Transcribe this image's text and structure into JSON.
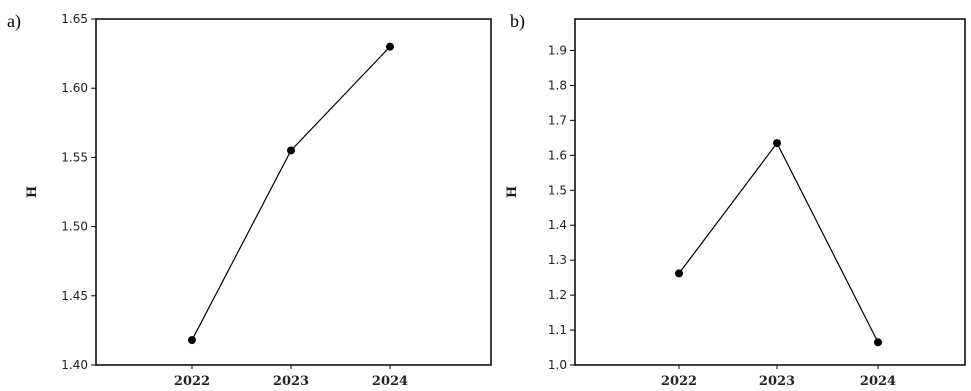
{
  "chart_data": [
    {
      "type": "line",
      "panel_label": "a)",
      "title": "",
      "xlabel": "",
      "ylabel": "H",
      "categories": [
        "2022",
        "2023",
        "2024"
      ],
      "values": [
        1.418,
        1.555,
        1.63
      ],
      "ylim": [
        1.4,
        1.65
      ],
      "yticks": [
        1.4,
        1.45,
        1.5,
        1.55,
        1.6,
        1.65
      ],
      "ytick_labels": [
        "1.40",
        "1.45",
        "1.50",
        "1.55",
        "1.60",
        "1.65"
      ],
      "grid": false,
      "legend": "none",
      "line_color": "#000000",
      "marker_color": "#000000"
    },
    {
      "type": "line",
      "panel_label": "b)",
      "title": "",
      "xlabel": "",
      "ylabel": "H",
      "categories": [
        "2022",
        "2023",
        "2024"
      ],
      "values": [
        1.262,
        1.635,
        1.065
      ],
      "ylim": [
        1.0,
        1.99
      ],
      "yticks": [
        1.0,
        1.1,
        1.2,
        1.3,
        1.4,
        1.5,
        1.6,
        1.7,
        1.8,
        1.9
      ],
      "ytick_labels": [
        "1.0",
        "1.1",
        "1.2",
        "1.3",
        "1.4",
        "1.5",
        "1.6",
        "1.7",
        "1.8",
        "1.9"
      ],
      "grid": false,
      "legend": "none",
      "line_color": "#000000",
      "marker_color": "#000000"
    }
  ]
}
